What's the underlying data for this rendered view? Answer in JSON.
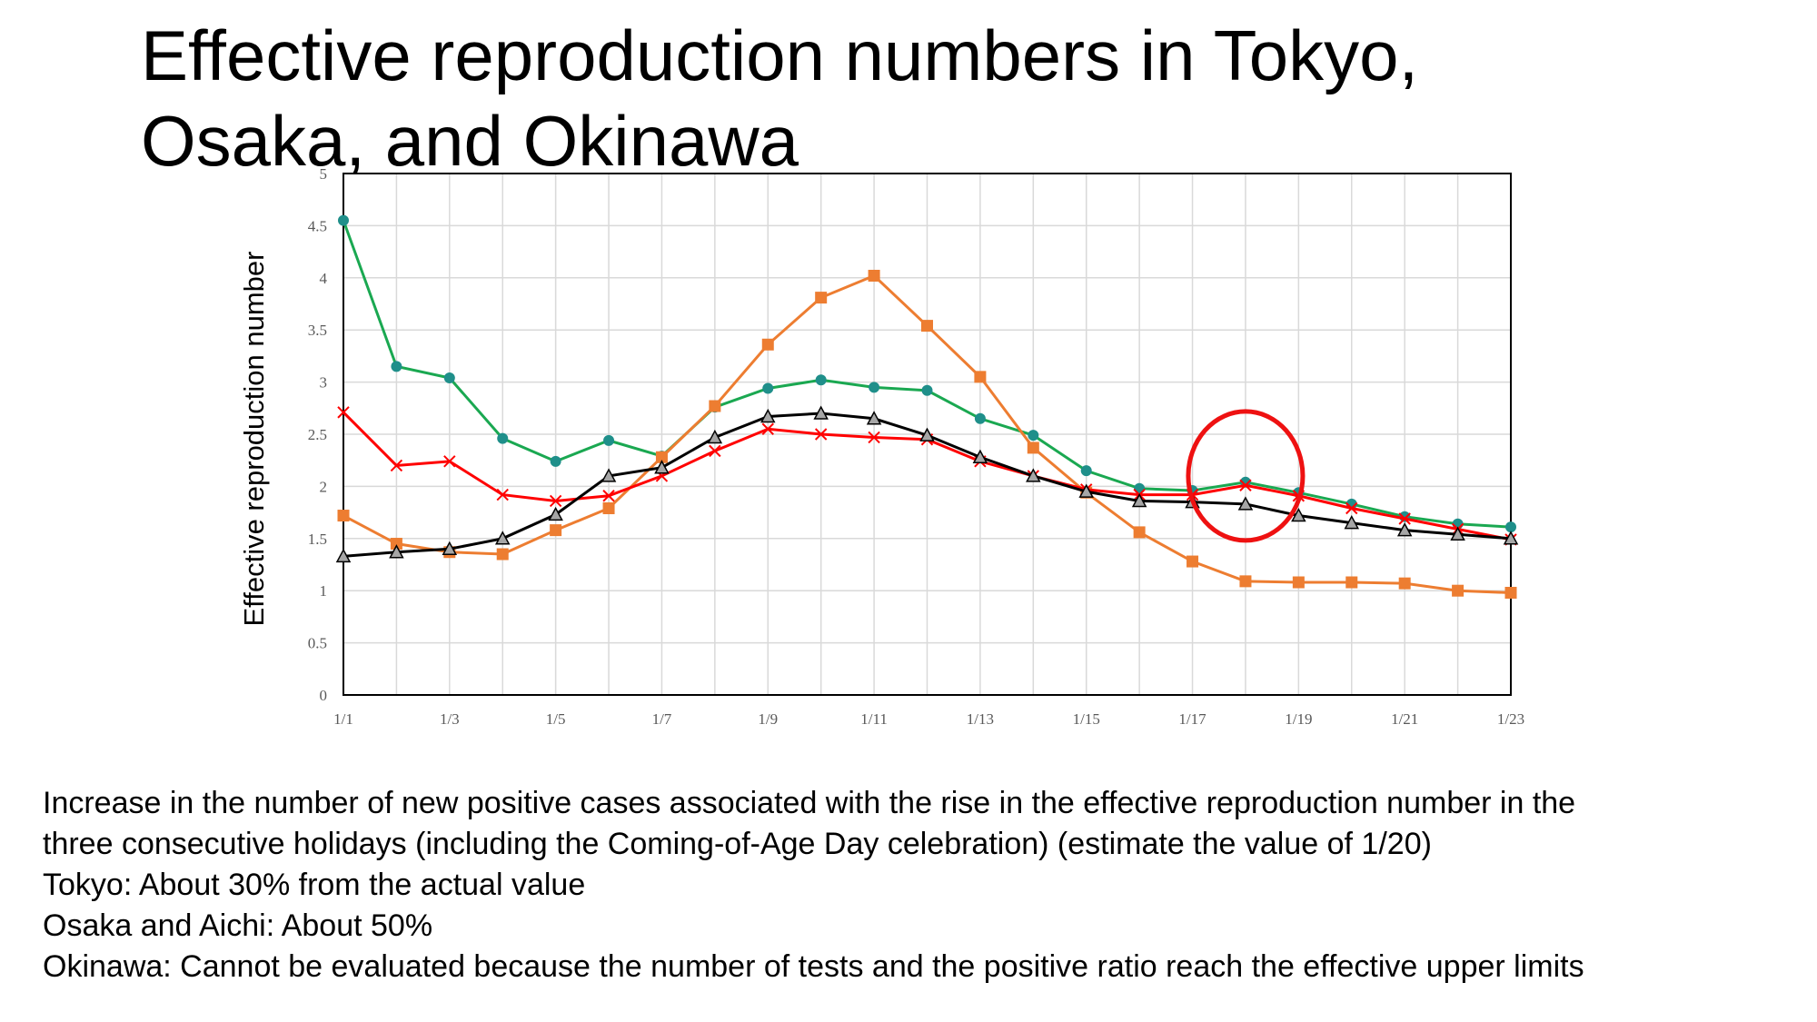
{
  "slide": {
    "title": "Effective reproduction numbers in Tokyo,\nOsaka, and Okinawa",
    "notes": [
      "Increase in the number of new positive cases associated with the rise in the effective reproduction number in the",
      "three consecutive holidays (including the Coming-of-Age Day celebration) (estimate the value of 1/20)",
      "Tokyo: About 30% from the actual value",
      "Osaka and Aichi: About 50%",
      "Okinawa: Cannot be evaluated because the number of tests and the positive ratio reach the effective upper limits"
    ]
  },
  "colors": {
    "green": "#1aa851",
    "green_marker": "#1f8f8a",
    "orange": "#ed7d31",
    "red": "#ff0000",
    "black": "#000000",
    "triangle_fill": "#a6a6a6",
    "grid": "#d9d9d9",
    "annotation_circle": "#ee1111"
  },
  "chart_data": {
    "type": "line",
    "title": "",
    "xlabel": "",
    "ylabel": "Effective reproduction number",
    "x": [
      "1/1",
      "1/2",
      "1/3",
      "1/4",
      "1/5",
      "1/6",
      "1/7",
      "1/8",
      "1/9",
      "1/10",
      "1/11",
      "1/12",
      "1/13",
      "1/14",
      "1/15",
      "1/16",
      "1/17",
      "1/18",
      "1/19",
      "1/20",
      "1/21",
      "1/22",
      "1/23"
    ],
    "xticks": [
      "1/1",
      "1/3",
      "1/5",
      "1/7",
      "1/9",
      "1/11",
      "1/13",
      "1/15",
      "1/17",
      "1/19",
      "1/21",
      "1/23"
    ],
    "ylim": [
      0,
      5
    ],
    "yticks": [
      "0",
      "0.5",
      "1",
      "1.5",
      "2",
      "2.5",
      "3",
      "3.5",
      "4",
      "4.5",
      "5"
    ],
    "grid": true,
    "legend": "none",
    "annotation": {
      "type": "circle",
      "x": "1/18",
      "y_center": 2.1
    },
    "series": [
      {
        "marker": "circle",
        "color_key": "green",
        "values": [
          4.55,
          3.15,
          3.04,
          2.46,
          2.24,
          2.44,
          2.29,
          2.76,
          2.94,
          3.02,
          2.95,
          2.92,
          2.65,
          2.49,
          2.15,
          1.98,
          1.96,
          2.04,
          1.94,
          1.83,
          1.71,
          1.64,
          1.61
        ]
      },
      {
        "marker": "square",
        "color_key": "orange",
        "values": [
          1.72,
          1.45,
          1.37,
          1.35,
          1.58,
          1.79,
          2.28,
          2.77,
          3.36,
          3.81,
          4.02,
          3.54,
          3.05,
          2.37,
          1.94,
          1.56,
          1.28,
          1.09,
          1.08,
          1.08,
          1.07,
          1.0,
          0.98
        ]
      },
      {
        "marker": "x",
        "color_key": "red",
        "values": [
          2.71,
          2.2,
          2.24,
          1.92,
          1.86,
          1.91,
          2.1,
          2.34,
          2.55,
          2.5,
          2.47,
          2.45,
          2.24,
          2.1,
          1.97,
          1.92,
          1.92,
          2.01,
          1.91,
          1.79,
          1.69,
          1.59,
          1.49
        ]
      },
      {
        "marker": "triangle",
        "color_key": "black",
        "values": [
          1.33,
          1.37,
          1.4,
          1.5,
          1.73,
          2.1,
          2.18,
          2.47,
          2.67,
          2.7,
          2.65,
          2.49,
          2.28,
          2.1,
          1.95,
          1.86,
          1.85,
          1.83,
          1.72,
          1.65,
          1.58,
          1.54,
          1.5
        ]
      }
    ]
  }
}
